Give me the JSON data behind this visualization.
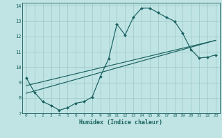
{
  "bg_color": "#c0e4e4",
  "grid_color": "#a0cccc",
  "line_color": "#1a6060",
  "marker_color": "#1a6060",
  "xlabel": "Humidex (Indice chaleur)",
  "xlim": [
    -0.5,
    23.5
  ],
  "ylim": [
    7,
    14.2
  ],
  "yticks": [
    7,
    8,
    9,
    10,
    11,
    12,
    13,
    14
  ],
  "xticks": [
    0,
    1,
    2,
    3,
    4,
    5,
    6,
    7,
    8,
    9,
    10,
    11,
    12,
    13,
    14,
    15,
    16,
    17,
    18,
    19,
    20,
    21,
    22,
    23
  ],
  "line1_x": [
    0,
    1,
    2,
    3,
    4,
    5,
    6,
    7,
    8,
    9,
    10,
    11,
    12,
    13,
    14,
    15,
    16,
    17,
    18,
    19,
    20,
    21,
    22,
    23
  ],
  "line1_y": [
    9.3,
    8.35,
    7.75,
    7.5,
    7.2,
    7.35,
    7.65,
    7.75,
    8.05,
    9.4,
    10.55,
    12.8,
    12.1,
    13.25,
    13.85,
    13.85,
    13.55,
    13.25,
    13.0,
    12.2,
    11.15,
    10.6,
    10.65,
    10.8
  ],
  "line2_x": [
    0,
    23
  ],
  "line2_y": [
    8.8,
    11.75
  ],
  "line3_x": [
    0,
    23
  ],
  "line3_y": [
    8.3,
    11.75
  ],
  "title_color": "#1a6060",
  "xlabel_fontsize": 6.0,
  "xtick_fontsize": 4.5,
  "ytick_fontsize": 5.0
}
